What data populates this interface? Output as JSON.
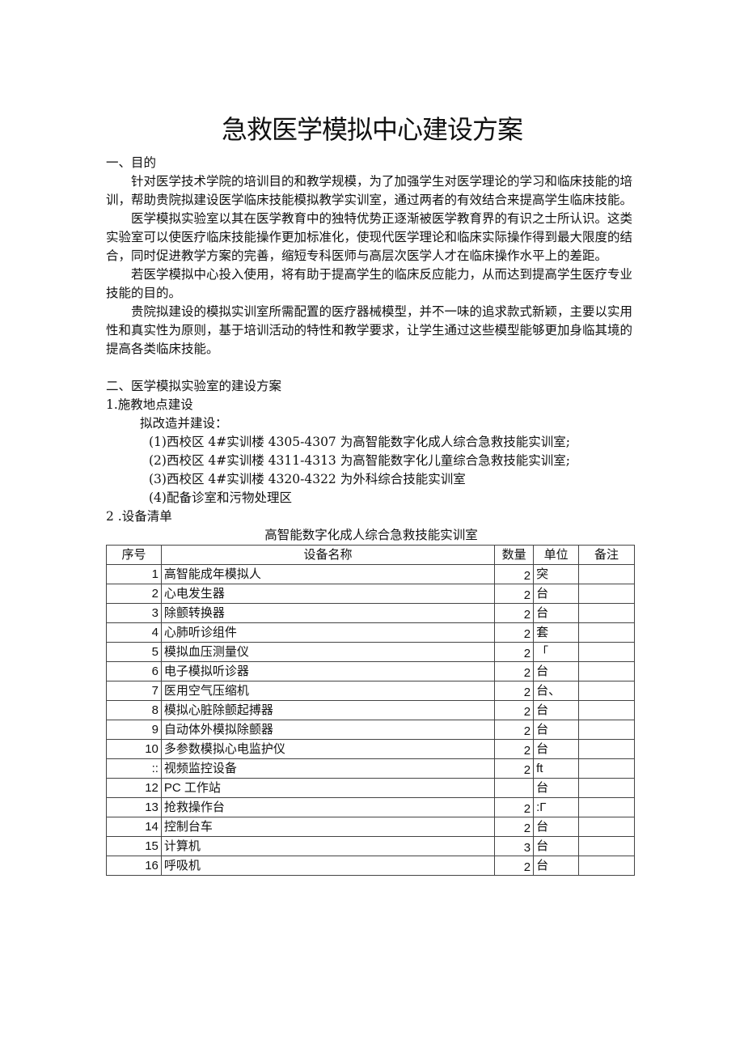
{
  "title": "急救医学模拟中心建设方案",
  "s1": {
    "heading": "一、目的",
    "paragraphs": [
      "针对医学技术学院的培训目的和教学规模，为了加强学生对医学理论的学习和临床技能的培训，帮助贵院拟建设医学临床技能模拟教学实训室，通过两者的有效结合来提高学生临床技能。",
      "医学模拟实验室以其在医学教育中的独特优势正逐渐被医学教育界的有识之士所认识。这类实验室可以使医疗临床技能操作更加标准化，使现代医学理论和临床实际操作得到最大限度的结合，同时促进教学方案的完善，缩短专科医师与高层次医学人才在临床操作水平上的差距。",
      "若医学模拟中心投入使用，将有助于提高学生的临床反应能力，从而达到提高学生医疗专业技能的目的。",
      "贵院拟建设的模拟实训室所需配置的医疗器械模型，并不一味的追求款式新颖，主要以实用性和真实性为原则，基于培训活动的特性和教学要求，让学生通过这些模型能够更加身临其境的提高各类临床技能。"
    ]
  },
  "s2": {
    "heading": "二、医学模拟实验室的建设方案",
    "sub1": "1.施教地点建设",
    "intro": "拟改造并建设：",
    "items": [
      "(1)西校区 4#实训楼 4305-4307 为高智能数字化成人综合急救技能实训室;",
      "(2)西校区 4#实训楼 4311-4313 为高智能数字化儿童综合急救技能实训室;",
      "(3)西校区 4#实训楼 4320-4322 为外科综合技能实训室",
      "(4)配备诊室和污物处理区"
    ],
    "sub2": "2  .设备清单"
  },
  "table": {
    "caption": "高智能数字化成人综合急救技能实训室",
    "headers": [
      "序号",
      "设备名称",
      "数量",
      "单位",
      "备注"
    ],
    "rows": [
      [
        "1",
        "高智能成年模拟人",
        "2",
        "突",
        ""
      ],
      [
        "2",
        "心电发生器",
        "2",
        "台",
        ""
      ],
      [
        "3",
        "除颤转换器",
        "2",
        "台",
        ""
      ],
      [
        "4",
        "心肺听诊组件",
        "2",
        "套",
        ""
      ],
      [
        "5",
        "模拟血压测量仪",
        "2",
        "「",
        ""
      ],
      [
        "6",
        "电子模拟听诊器",
        "2",
        "台",
        ""
      ],
      [
        "7",
        "医用空气压缩机",
        "2",
        "台、",
        ""
      ],
      [
        "8",
        "模拟心脏除颤起搏器",
        "2",
        "台",
        ""
      ],
      [
        "9",
        "自动体外模拟除颤器",
        "2",
        "台",
        ""
      ],
      [
        "10",
        "多参数模拟心电监护仪",
        "2",
        "台",
        ""
      ],
      [
        "::",
        "视频监控设备",
        "2",
        "ft",
        ""
      ],
      [
        "12",
        "PC 工作站",
        "",
        "台",
        ""
      ],
      [
        "13",
        "抢救操作台",
        "2",
        ":Γ",
        ""
      ],
      [
        "14",
        "控制台车",
        "2",
        "台",
        ""
      ],
      [
        "15",
        "计算机",
        "3",
        "台",
        ""
      ],
      [
        "16",
        "呼吸机",
        "2",
        "台",
        ""
      ]
    ]
  }
}
